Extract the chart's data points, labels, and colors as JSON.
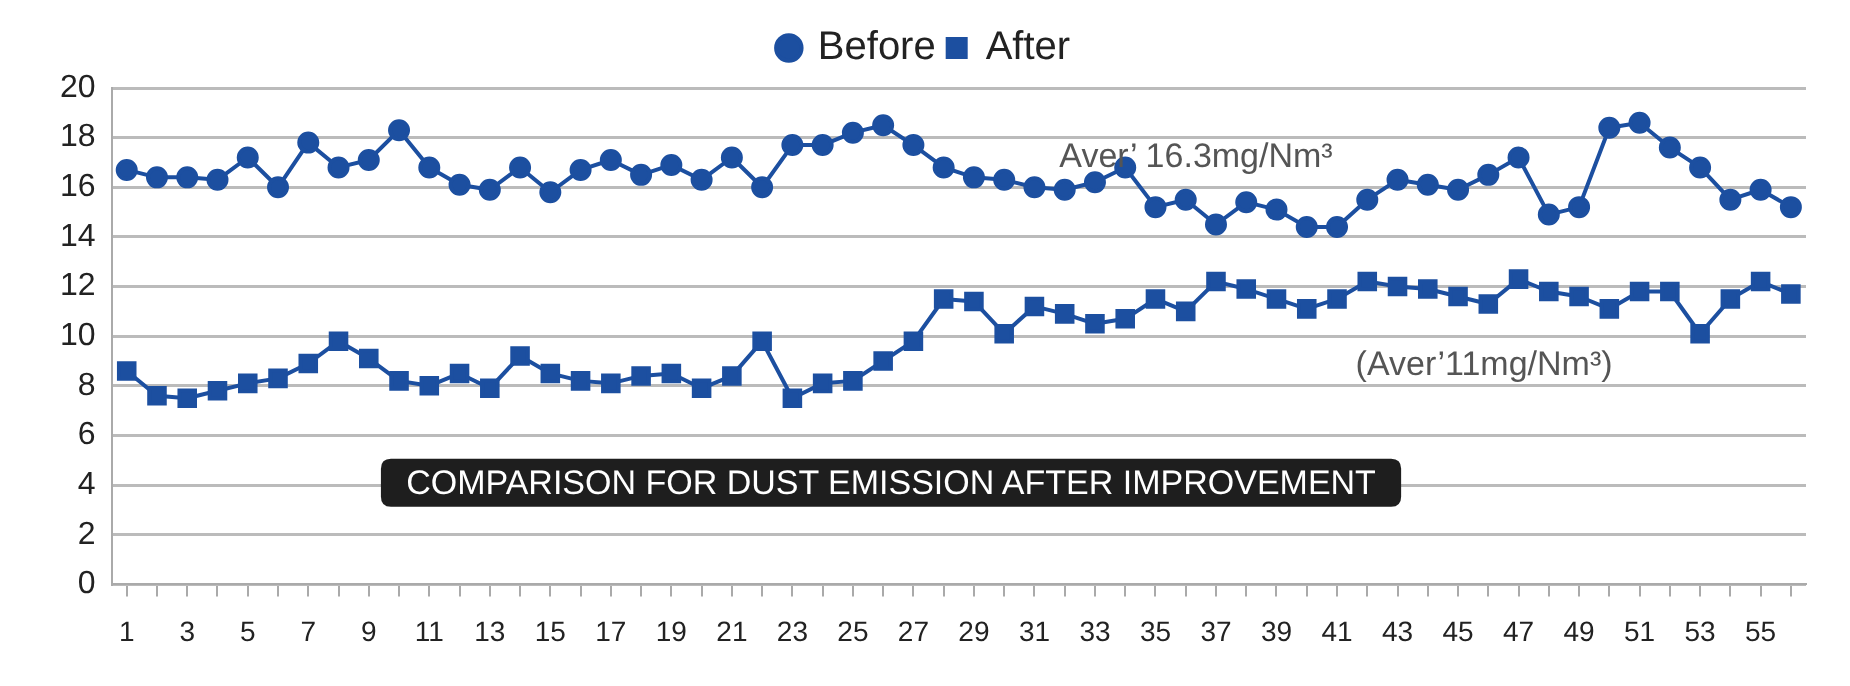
{
  "chart_data": {
    "type": "line",
    "title": "COMPARISON FOR DUST EMISSION AFTER IMPROVEMENT",
    "x": [
      1,
      2,
      3,
      4,
      5,
      6,
      7,
      8,
      9,
      10,
      11,
      12,
      13,
      14,
      15,
      16,
      17,
      18,
      19,
      20,
      21,
      22,
      23,
      24,
      25,
      26,
      27,
      28,
      29,
      30,
      31,
      32,
      33,
      34,
      35,
      36,
      37,
      38,
      39,
      40,
      41,
      42,
      43,
      44,
      45,
      46,
      47,
      48,
      49,
      50,
      51,
      52,
      53,
      54,
      55,
      56
    ],
    "xlim": [
      0.5,
      56.5
    ],
    "xticks": [
      1,
      {
        "value": 2,
        "label": null
      },
      3,
      {
        "value": 4,
        "label": null
      },
      5,
      {
        "value": 6,
        "label": null
      },
      7,
      {
        "value": 8,
        "label": null
      },
      9,
      {
        "value": 10,
        "label": null
      },
      11,
      {
        "value": 12,
        "label": null
      },
      13,
      {
        "value": 14,
        "label": null
      },
      15,
      {
        "value": 16,
        "label": null
      },
      17,
      {
        "value": 18,
        "label": null
      },
      19,
      {
        "value": 20,
        "label": null
      },
      21,
      {
        "value": 22,
        "label": null
      },
      23,
      {
        "value": 24,
        "label": null
      },
      25,
      {
        "value": 26,
        "label": null
      },
      27,
      {
        "value": 28,
        "label": null
      },
      29,
      {
        "value": 30,
        "label": null
      },
      31,
      {
        "value": 32,
        "label": null
      },
      33,
      {
        "value": 34,
        "label": null
      },
      35,
      {
        "value": 36,
        "label": null
      },
      37,
      {
        "value": 38,
        "label": null
      },
      39,
      {
        "value": 40,
        "label": null
      },
      41,
      {
        "value": 42,
        "label": null
      },
      43,
      {
        "value": 44,
        "label": null
      },
      45,
      {
        "value": 46,
        "label": null
      },
      47,
      {
        "value": 48,
        "label": null
      },
      49,
      {
        "value": 50,
        "label": null
      },
      51,
      {
        "value": 52,
        "label": null
      },
      53,
      {
        "value": 54,
        "label": null
      },
      55,
      {
        "value": 56,
        "label": null
      }
    ],
    "series": [
      {
        "name": "Before",
        "color": "#1c4fa0",
        "marker": "circle",
        "values": [
          16.7,
          16.4,
          16.4,
          16.3,
          17.2,
          16.0,
          17.8,
          16.8,
          17.1,
          18.3,
          16.8,
          16.1,
          15.9,
          16.8,
          15.8,
          16.7,
          17.1,
          16.5,
          16.9,
          16.3,
          17.2,
          16.0,
          17.7,
          17.7,
          18.2,
          18.5,
          17.7,
          16.8,
          16.4,
          16.3,
          16.0,
          15.9,
          16.2,
          16.8,
          15.2,
          15.5,
          14.5,
          15.4,
          15.1,
          14.4,
          14.4,
          15.5,
          16.3,
          16.1,
          15.9,
          16.5,
          17.2,
          14.9,
          15.2,
          18.4,
          18.6,
          17.6,
          16.8,
          15.5,
          15.9,
          15.2
        ]
      },
      {
        "name": "After",
        "color": "#1c4fa0",
        "marker": "square",
        "values": [
          8.6,
          7.6,
          7.5,
          7.8,
          8.1,
          8.3,
          8.9,
          9.8,
          9.1,
          8.2,
          8.0,
          8.5,
          7.9,
          9.2,
          8.5,
          8.2,
          8.1,
          8.4,
          8.5,
          7.9,
          8.4,
          9.8,
          7.5,
          8.1,
          8.2,
          9.0,
          9.8,
          11.5,
          11.4,
          10.1,
          11.2,
          10.9,
          10.5,
          10.7,
          11.5,
          11.0,
          12.2,
          11.9,
          11.5,
          11.1,
          11.5,
          12.2,
          12.0,
          11.9,
          11.6,
          11.3,
          12.3,
          11.8,
          11.6,
          11.1,
          11.8,
          11.8,
          10.1,
          11.5,
          12.2,
          11.7
        ]
      }
    ],
    "ylim": [
      0,
      20
    ],
    "yticks": [
      0,
      2,
      4,
      6,
      8,
      10,
      12,
      14,
      16,
      18,
      20
    ],
    "grid": "y",
    "legend": "top",
    "line_style": "solid",
    "annotations": [
      "Aver’ 16.3mg/Nm³",
      "(Aver’11mg/Nm³)"
    ]
  }
}
